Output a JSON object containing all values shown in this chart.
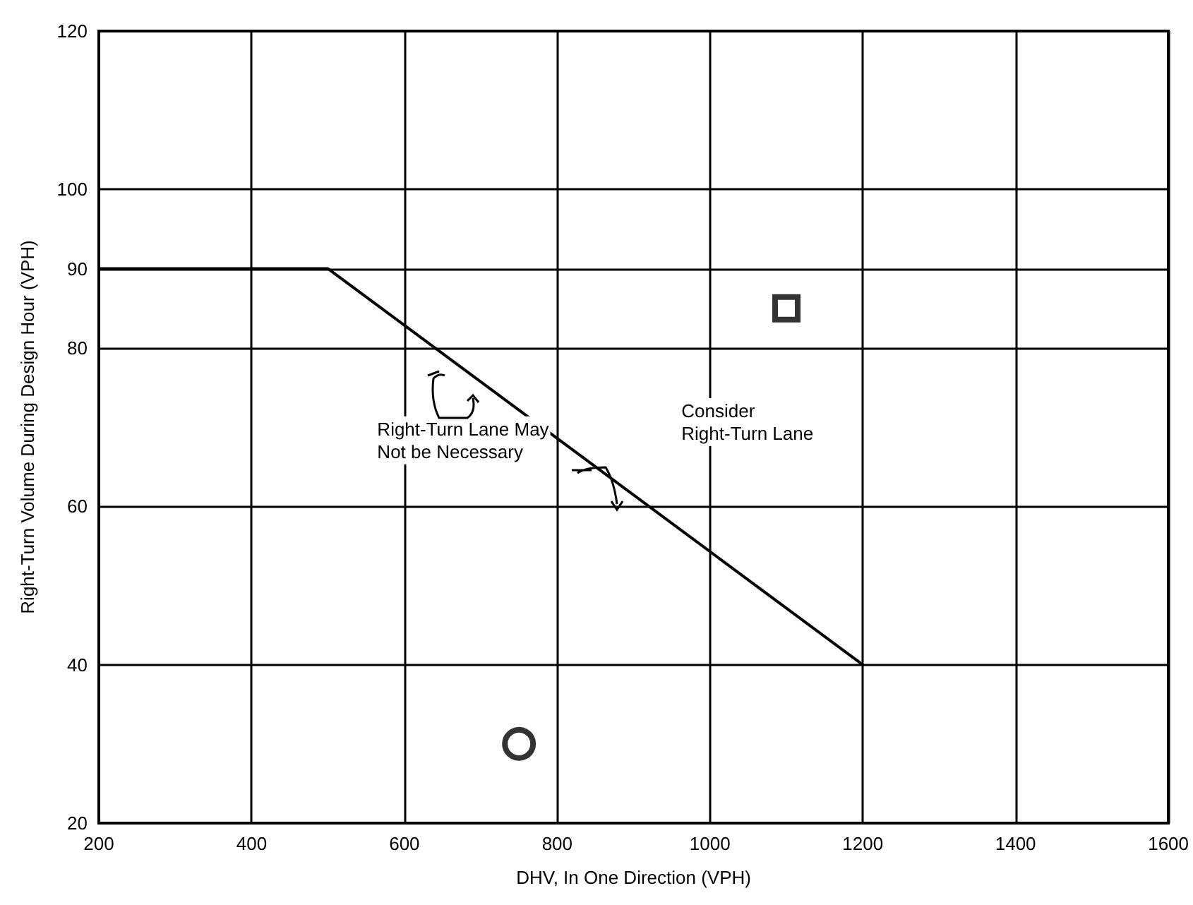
{
  "chart_data": {
    "type": "line",
    "xlabel": "DHV, In One Direction (VPH)",
    "ylabel": "Right-Turn Volume During Design Hour (VPH)",
    "xlim": [
      200,
      1600
    ],
    "xticks": [
      200,
      400,
      600,
      800,
      1000,
      1200,
      1400,
      1600
    ],
    "ylim": [
      20,
      120
    ],
    "yticks": [
      20,
      40,
      60,
      80,
      90,
      100,
      120
    ],
    "grid": true,
    "series": [
      {
        "color": "#000000",
        "x": [
          200,
          500,
          1200
        ],
        "values": [
          90,
          90,
          40
        ],
        "marker": "none",
        "line_style": "solid"
      },
      {
        "type": "scatter",
        "color": "#000000",
        "x": [
          750
        ],
        "values": [
          30
        ],
        "marker": "circle"
      },
      {
        "type": "scatter",
        "color": "#000000",
        "x": [
          1100
        ],
        "values": [
          85
        ],
        "marker": "square"
      }
    ],
    "annotations": [
      "Right-Turn Lane May\nNot be Necessary",
      "Consider\nRight-Turn Lane"
    ]
  }
}
